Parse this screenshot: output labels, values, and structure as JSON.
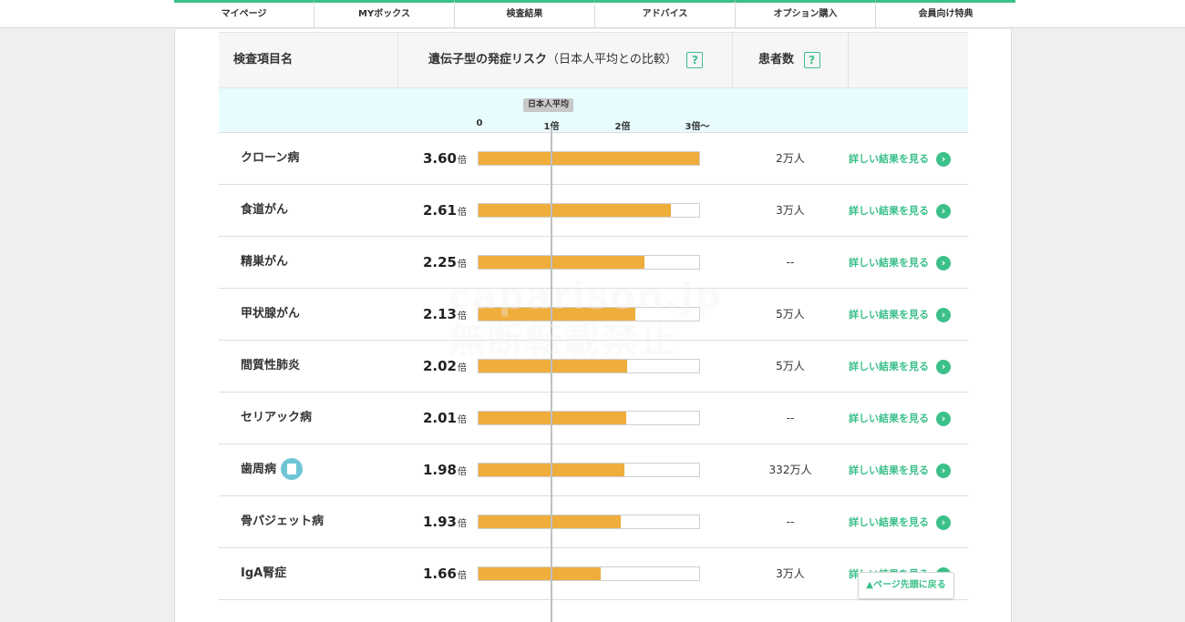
{
  "nav": {
    "tabs": [
      "マイページ",
      "MYボックス",
      "検査結果",
      "アドバイス",
      "オプション購入",
      "会員向け特典"
    ]
  },
  "table": {
    "col_name": "検査項目名",
    "col_risk": "遺伝子型の発症リスク",
    "col_risk_sub": "（日本人平均との比較）",
    "col_patients": "患者数",
    "help_mark": "?",
    "avg_label": "日本人平均",
    "ticks": [
      "0",
      "1倍",
      "2倍",
      "3倍〜"
    ],
    "unit": "倍",
    "detail_label": "詳しい結果を見る",
    "arrow": "›"
  },
  "rows": [
    {
      "name": "クローン病",
      "value": "3.60",
      "ratio": 3.6,
      "patients": "2万人",
      "book_icon": false
    },
    {
      "name": "食道がん",
      "value": "2.61",
      "ratio": 2.61,
      "patients": "3万人",
      "book_icon": false
    },
    {
      "name": "精巣がん",
      "value": "2.25",
      "ratio": 2.25,
      "patients": "--",
      "book_icon": false
    },
    {
      "name": "甲状腺がん",
      "value": "2.13",
      "ratio": 2.13,
      "patients": "5万人",
      "book_icon": false
    },
    {
      "name": "間質性肺炎",
      "value": "2.02",
      "ratio": 2.02,
      "patients": "5万人",
      "book_icon": false
    },
    {
      "name": "セリアック病",
      "value": "2.01",
      "ratio": 2.01,
      "patients": "--",
      "book_icon": false
    },
    {
      "name": "歯周病",
      "value": "1.98",
      "ratio": 1.98,
      "patients": "332万人",
      "book_icon": true
    },
    {
      "name": "骨パジェット病",
      "value": "1.93",
      "ratio": 1.93,
      "patients": "--",
      "book_icon": false
    },
    {
      "name": "IgA腎症",
      "value": "1.66",
      "ratio": 1.66,
      "patients": "3万人",
      "book_icon": false
    }
  ],
  "watermark": [
    "caparison.jp",
    "無断転載禁止"
  ],
  "back_to_top": "▲ページ先頭に戻る",
  "colors": {
    "accent": "#3cc08a",
    "bar": "#efad3c",
    "scale_bg": "#e8fbfd"
  }
}
